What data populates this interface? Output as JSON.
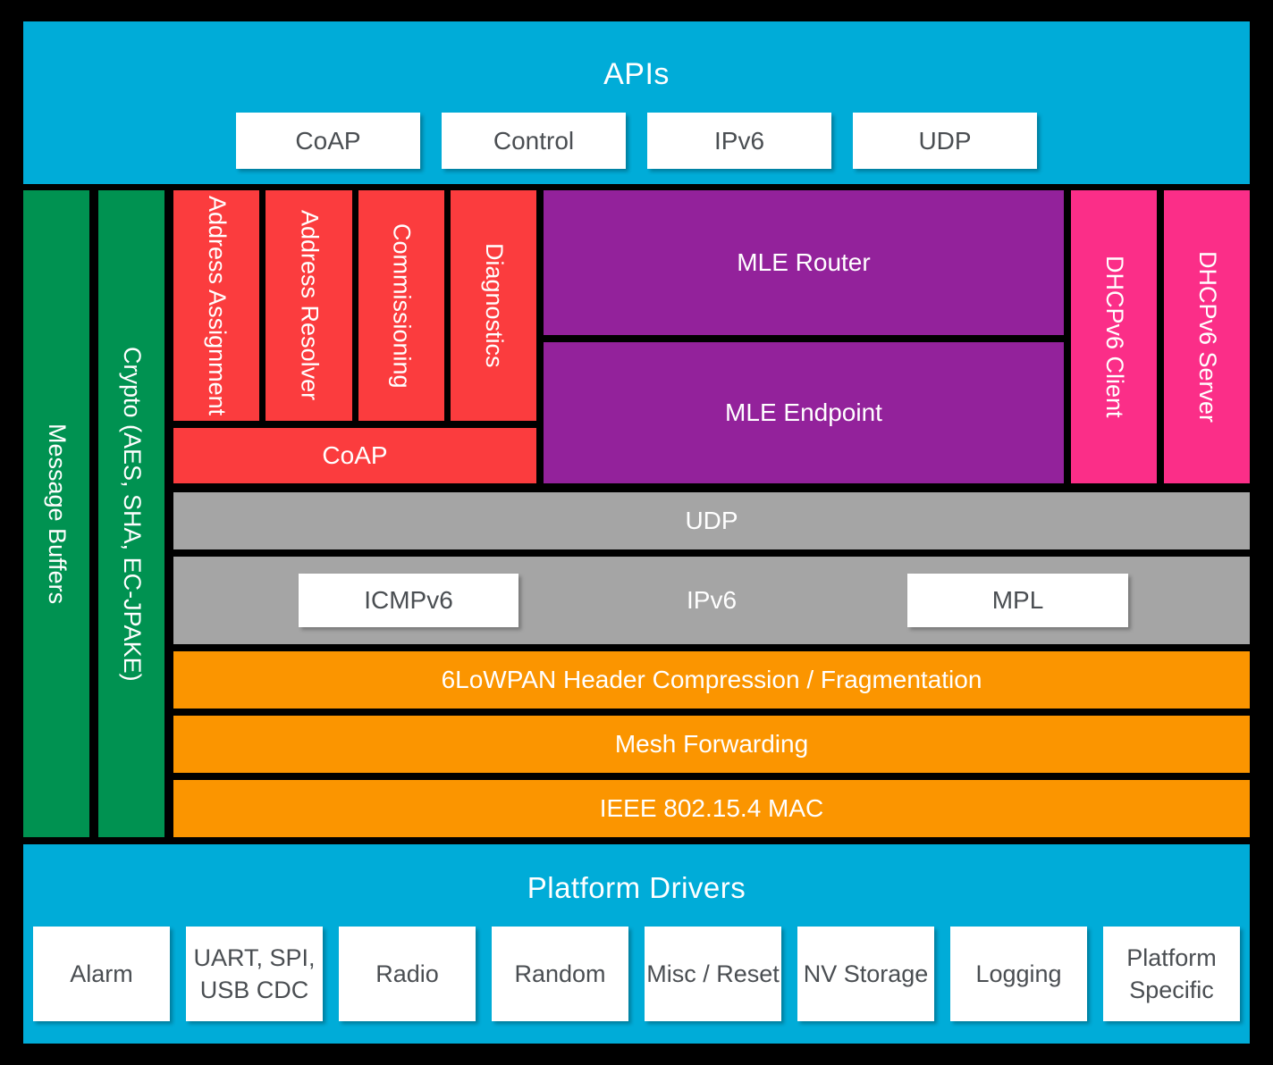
{
  "colors": {
    "background": "#000000",
    "banner_cyan": "#00ACD8",
    "resource_green": "#009251",
    "module_red": "#FB3C3E",
    "mle_purple": "#93229B",
    "dhcp_pink": "#FB2E88",
    "transport_gray": "#A5A5A5",
    "link_orange": "#FB9500",
    "white_box_text": "#4A4E52",
    "label_white": "#FFFFFF"
  },
  "api_banner": {
    "title": "APIs",
    "boxes": [
      "CoAP",
      "Control",
      "IPv6",
      "UDP"
    ]
  },
  "resources": {
    "message_buffers": "Message Buffers",
    "crypto": "Crypto (AES, SHA, EC-JPAKE)"
  },
  "stack": {
    "modules": [
      "Address Assignment",
      "Address Resolver",
      "Commissioning",
      "Diagnostics"
    ],
    "coap": "CoAP",
    "mle_router": "MLE Router",
    "mle_endpoint": "MLE Endpoint",
    "dhcp_client": "DHCPv6 Client",
    "dhcp_server": "DHCPv6 Server",
    "udp": "UDP",
    "ipv6": "IPv6",
    "icmpv6": "ICMPv6",
    "mpl": "MPL",
    "lowpan": "6LoWPAN Header Compression / Fragmentation",
    "mesh_forwarding": "Mesh Forwarding",
    "mac": "IEEE 802.15.4 MAC"
  },
  "platform_banner": {
    "title": "Platform Drivers",
    "boxes": [
      "Alarm",
      "UART, SPI, USB CDC",
      "Radio",
      "Random",
      "Misc / Reset",
      "NV Storage",
      "Logging",
      "Platform Specific"
    ]
  }
}
